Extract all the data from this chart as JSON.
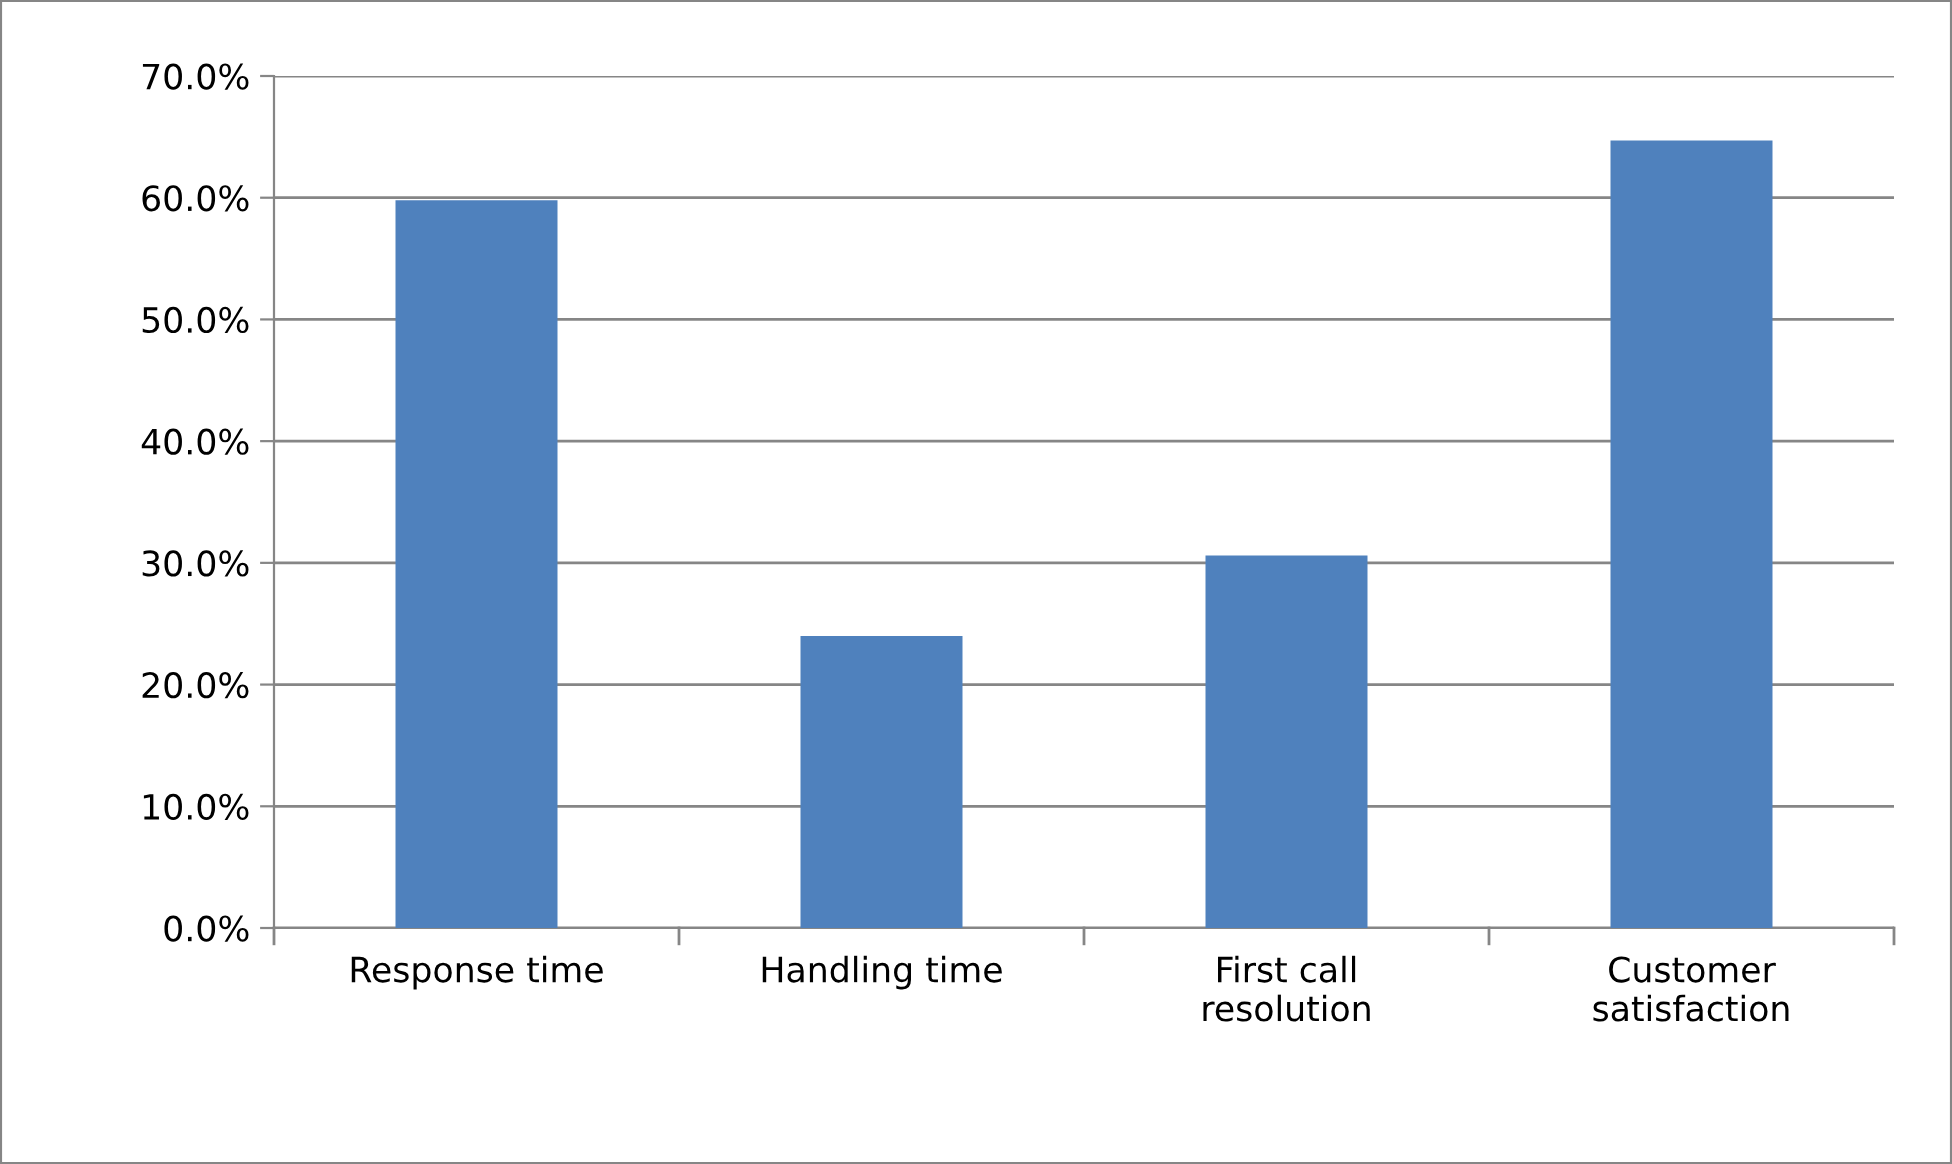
{
  "chart_data": {
    "type": "bar",
    "categories": [
      "Response time",
      "Handling time",
      "First call\nresolution",
      "Customer\nsatisfaction"
    ],
    "values": [
      59.8,
      24.0,
      30.6,
      64.7
    ],
    "color": "#4f81bd",
    "ylim": [
      0,
      70
    ],
    "yticks": [
      {
        "value": 0,
        "label": "0.0%"
      },
      {
        "value": 10,
        "label": "10.0%"
      },
      {
        "value": 20,
        "label": "20.0%"
      },
      {
        "value": 30,
        "label": "30.0%"
      },
      {
        "value": 40,
        "label": "40.0%"
      },
      {
        "value": 50,
        "label": "50.0%"
      },
      {
        "value": 60,
        "label": "60.0%"
      },
      {
        "value": 70,
        "label": "70.0%"
      }
    ],
    "grid": "y"
  }
}
